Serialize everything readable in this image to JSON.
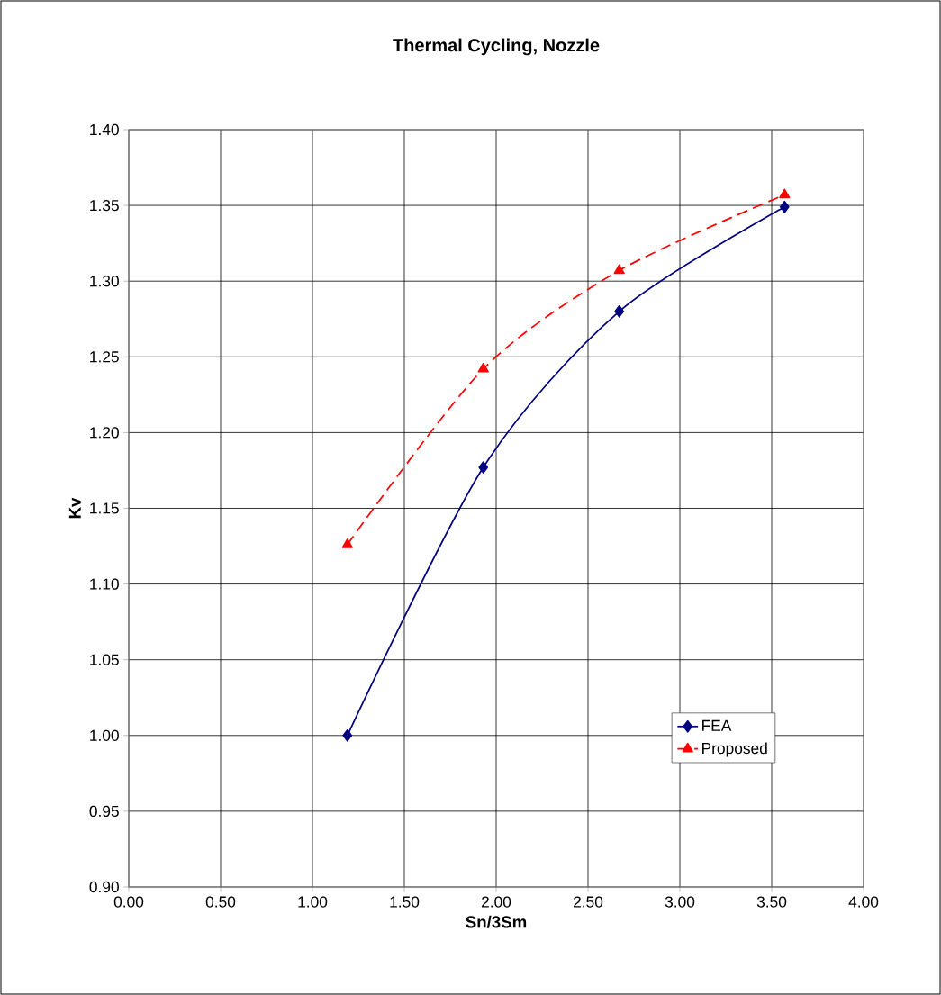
{
  "chart_data": {
    "type": "line",
    "title": "Thermal Cycling, Nozzle",
    "xlabel": "Sn/3Sm",
    "ylabel": "Kv",
    "series": [
      {
        "name": "FEA",
        "color": "#000080",
        "x": [
          1.19,
          1.93,
          2.67,
          3.57
        ],
        "values": [
          1.0,
          1.177,
          1.28,
          1.349
        ],
        "marker": "diamond",
        "line_style": "solid"
      },
      {
        "name": "Proposed",
        "color": "#ff0000",
        "x": [
          1.19,
          1.93,
          2.67,
          3.57
        ],
        "values": [
          1.126,
          1.242,
          1.307,
          1.357
        ],
        "marker": "triangle",
        "line_style": "dashed"
      }
    ],
    "xlim": [
      0,
      4
    ],
    "ylim": [
      0.9,
      1.4
    ],
    "xticks": [
      {
        "value": 0,
        "label": "0.00"
      },
      {
        "value": 0.5,
        "label": "0.50"
      },
      {
        "value": 1,
        "label": "1.00"
      },
      {
        "value": 1.5,
        "label": "1.50"
      },
      {
        "value": 2,
        "label": "2.00"
      },
      {
        "value": 2.5,
        "label": "2.50"
      },
      {
        "value": 3,
        "label": "3.00"
      },
      {
        "value": 3.5,
        "label": "3.50"
      },
      {
        "value": 4,
        "label": "4.00"
      }
    ],
    "yticks": [
      {
        "value": 0.9,
        "label": "0.90"
      },
      {
        "value": 0.95,
        "label": "0.95"
      },
      {
        "value": 1.0,
        "label": "1.00"
      },
      {
        "value": 1.05,
        "label": "1.05"
      },
      {
        "value": 1.1,
        "label": "1.10"
      },
      {
        "value": 1.15,
        "label": "1.15"
      },
      {
        "value": 1.2,
        "label": "1.20"
      },
      {
        "value": 1.25,
        "label": "1.25"
      },
      {
        "value": 1.3,
        "label": "1.30"
      },
      {
        "value": 1.35,
        "label": "1.35"
      },
      {
        "value": 1.4,
        "label": "1.40"
      }
    ],
    "grid": true,
    "legend": "bottom right"
  }
}
